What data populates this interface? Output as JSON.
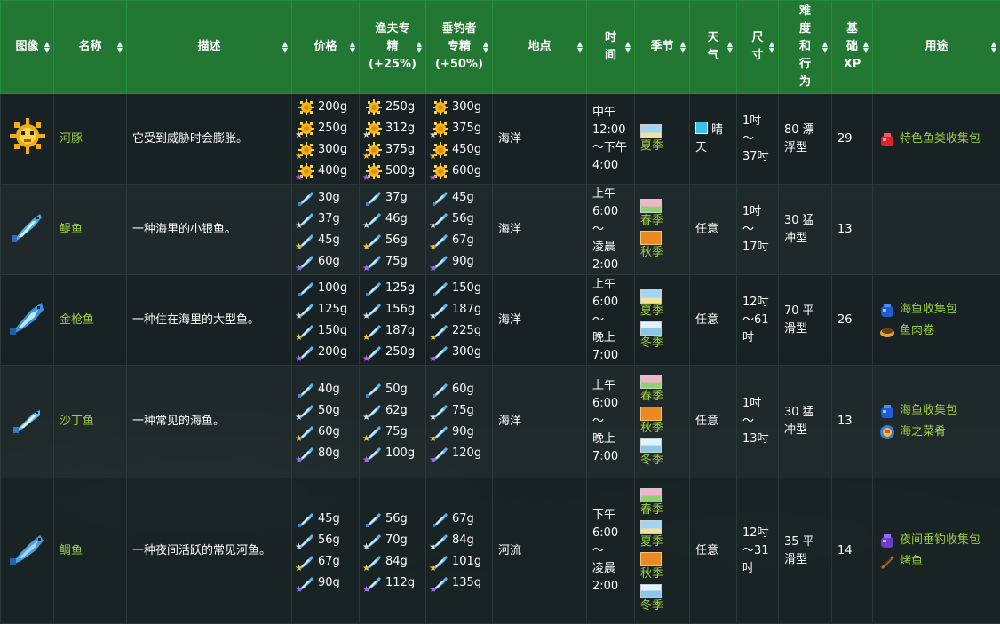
{
  "headers": {
    "image": "图像",
    "name": "名称",
    "desc": "描述",
    "price": "价格",
    "fisher": "渔夫专精(+25%)",
    "angler": "垂钓者专精(+50%)",
    "location": "地点",
    "time": "时间",
    "season": "季节",
    "weather": "天气",
    "size": "尺寸",
    "difficulty": "难度和行为",
    "xp": "基础XP",
    "use": "用途"
  },
  "header_lines": {
    "fisher": [
      "渔夫专",
      "精",
      "(+25%)"
    ],
    "angler": [
      "垂钓者",
      "专精",
      "(+50%)"
    ],
    "time": [
      "时",
      "间"
    ],
    "weather": [
      "天",
      "气"
    ],
    "size": [
      "尺",
      "寸"
    ],
    "difficulty": [
      "难",
      "度",
      "和",
      "行",
      "为"
    ],
    "xp": [
      "基",
      "础",
      "XP"
    ]
  },
  "rows": [
    {
      "name": "河豚",
      "sprite": "pufferfish-icon",
      "desc": "它受到威胁时会膨胀。",
      "price": [
        "200g",
        "250g",
        "300g",
        "400g"
      ],
      "fisher": [
        "250g",
        "312g",
        "375g",
        "500g"
      ],
      "angler": [
        "300g",
        "375g",
        "450g",
        "600g"
      ],
      "location": "海洋",
      "time_lines": [
        "中午",
        "12:00",
        "～下午",
        "4:00"
      ],
      "seasons": [
        "夏季"
      ],
      "weather": "晴天",
      "weather_lines": [
        "晴",
        "天"
      ],
      "size_lines": [
        "1吋～",
        "37吋"
      ],
      "difficulty_lines": [
        "80 漂",
        "浮型"
      ],
      "xp": "29",
      "uses": [
        {
          "label": "特色鱼类收集包",
          "icon": "red-bundle-icon"
        }
      ]
    },
    {
      "name": "鳀鱼",
      "sprite": "anchovy-icon",
      "desc": "一种海里的小银鱼。",
      "price": [
        "30g",
        "37g",
        "45g",
        "60g"
      ],
      "fisher": [
        "37g",
        "46g",
        "56g",
        "75g"
      ],
      "angler": [
        "45g",
        "56g",
        "67g",
        "90g"
      ],
      "location": "海洋",
      "time_lines": [
        "上午",
        "6:00～",
        "凌晨",
        "2:00"
      ],
      "seasons": [
        "春季",
        "秋季"
      ],
      "weather": "任意",
      "size_lines": [
        "1吋～",
        "17吋"
      ],
      "difficulty_lines": [
        "30 猛",
        "冲型"
      ],
      "xp": "13",
      "uses": []
    },
    {
      "name": "金枪鱼",
      "sprite": "tuna-icon",
      "desc": "一种住在海里的大型鱼。",
      "price": [
        "100g",
        "125g",
        "150g",
        "200g"
      ],
      "fisher": [
        "125g",
        "156g",
        "187g",
        "250g"
      ],
      "angler": [
        "150g",
        "187g",
        "225g",
        "300g"
      ],
      "location": "海洋",
      "time_lines": [
        "上午",
        "6:00～",
        "晚上",
        "7:00"
      ],
      "seasons": [
        "夏季",
        "冬季"
      ],
      "weather": "任意",
      "size_lines": [
        "12吋",
        "～61",
        "吋"
      ],
      "difficulty_lines": [
        "70 平",
        "滑型"
      ],
      "xp": "26",
      "uses": [
        {
          "label": "海鱼收集包",
          "icon": "blue-bundle-icon"
        },
        {
          "label": "鱼肉卷",
          "icon": "fish-taco-icon"
        }
      ]
    },
    {
      "name": "沙丁鱼",
      "sprite": "sardine-icon",
      "desc": "一种常见的海鱼。",
      "price": [
        "40g",
        "50g",
        "60g",
        "80g"
      ],
      "fisher": [
        "50g",
        "62g",
        "75g",
        "100g"
      ],
      "angler": [
        "60g",
        "75g",
        "90g",
        "120g"
      ],
      "location": "海洋",
      "time_lines": [
        "上午",
        "6:00～",
        "晚上",
        "7:00"
      ],
      "seasons": [
        "春季",
        "秋季",
        "冬季"
      ],
      "weather": "任意",
      "size_lines": [
        "1吋～",
        "13吋"
      ],
      "difficulty_lines": [
        "30 猛",
        "冲型"
      ],
      "xp": "13",
      "uses": [
        {
          "label": "海鱼收集包",
          "icon": "blue-bundle-icon"
        },
        {
          "label": "海之菜肴",
          "icon": "dish-of-the-sea-icon"
        }
      ]
    },
    {
      "name": "鲷鱼",
      "sprite": "bream-icon",
      "desc": "一种夜间活跃的常见河鱼。",
      "price": [
        "45g",
        "56g",
        "67g",
        "90g"
      ],
      "fisher": [
        "56g",
        "70g",
        "84g",
        "112g"
      ],
      "angler": [
        "67g",
        "84g",
        "101g",
        "135g"
      ],
      "location": "河流",
      "time_lines": [
        "下午",
        "6:00～",
        "凌晨",
        "2:00"
      ],
      "seasons": [
        "春季",
        "夏季",
        "秋季",
        "冬季"
      ],
      "weather": "任意",
      "size_lines": [
        "12吋",
        "～31",
        "吋"
      ],
      "difficulty_lines": [
        "35 平",
        "滑型"
      ],
      "xp": "14",
      "uses": [
        {
          "label": "夜间垂钓收集包",
          "icon": "purple-bundle-icon"
        },
        {
          "label": "烤鱼",
          "icon": "grilled-fish-icon"
        }
      ]
    }
  ],
  "quality_stars": [
    "none",
    "silver",
    "gold",
    "iridium"
  ],
  "colors": {
    "header": "#227733",
    "accent": "#9ccf3f"
  }
}
